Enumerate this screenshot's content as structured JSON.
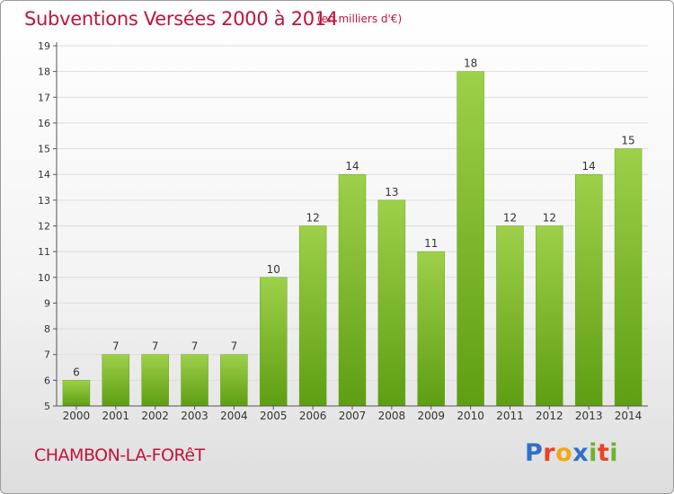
{
  "header": {
    "title": "Subventions Versées 2000 à 2014",
    "unit_note": "(en milliers d'€)"
  },
  "footer": {
    "commune": "CHAMBON-LA-FORêT",
    "logo_text": "Proxiti"
  },
  "colors": {
    "title": "#c0143c",
    "bar_top": "#9ed04a",
    "bar_bottom": "#5e9e12",
    "axis": "#555555",
    "grid": "#dddddd"
  },
  "chart_data": {
    "type": "bar",
    "title": "Subventions Versées 2000 à 2014",
    "subtitle": "(en milliers d'€)",
    "xlabel": "",
    "ylabel": "",
    "categories": [
      "2000",
      "2001",
      "2002",
      "2003",
      "2004",
      "2005",
      "2006",
      "2007",
      "2008",
      "2009",
      "2010",
      "2011",
      "2012",
      "2013",
      "2014"
    ],
    "values": [
      6,
      7,
      7,
      7,
      7,
      10,
      12,
      14,
      13,
      11,
      18,
      12,
      12,
      14,
      15
    ],
    "ylim": [
      5,
      19
    ],
    "yticks": [
      5,
      6,
      7,
      8,
      9,
      10,
      11,
      12,
      13,
      14,
      15,
      16,
      17,
      18,
      19
    ],
    "grid": true,
    "legend": "none"
  }
}
